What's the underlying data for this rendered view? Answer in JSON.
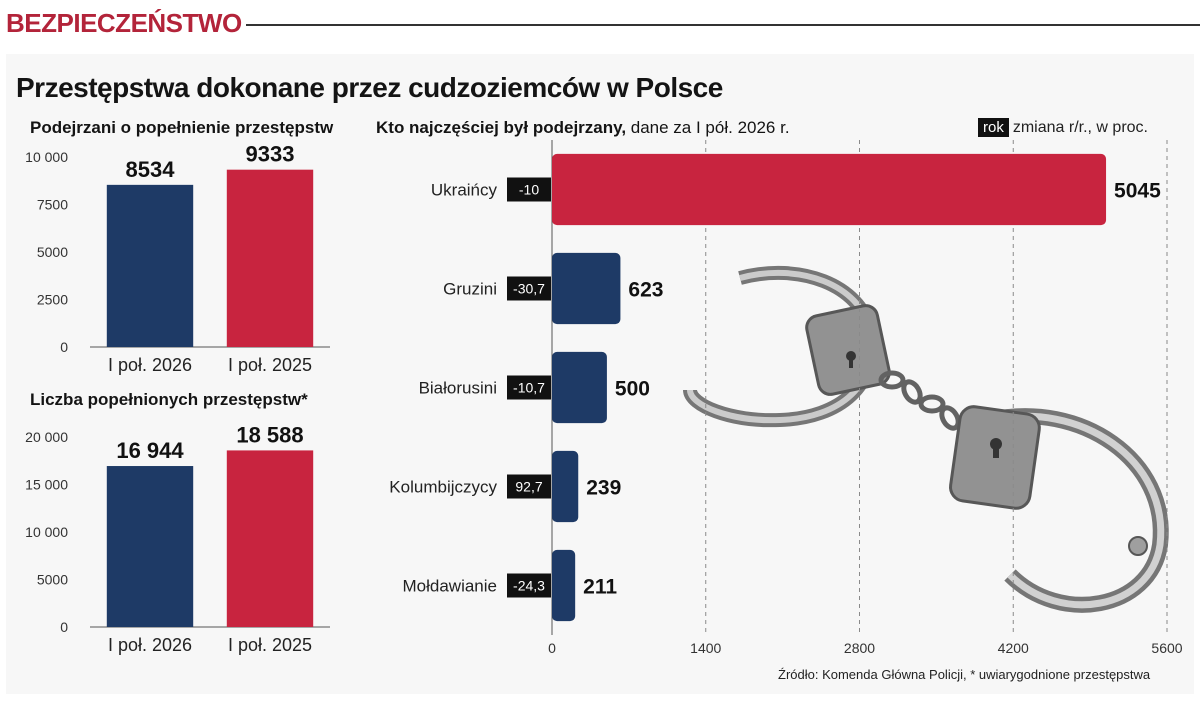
{
  "header": {
    "section": "BEZPIECZEŃSTWO",
    "title": "Przestępstwa dokonane przez cudzoziemców w Polsce"
  },
  "colors": {
    "navy": "#1e3a66",
    "red": "#c8243f",
    "change_bg": "#111111"
  },
  "chart_data": [
    {
      "type": "bar",
      "title": "Podejrzani o popełnienie przestępstw",
      "categories": [
        "I poł. 2026",
        "I poł. 2025"
      ],
      "values": [
        8534,
        9333
      ],
      "value_labels": [
        "8534",
        "9333"
      ],
      "ylim": [
        0,
        10000
      ],
      "yticks": [
        0,
        2500,
        5000,
        7500,
        10000
      ],
      "ytick_labels": [
        "0",
        "2500",
        "5000",
        "7500",
        "10 000"
      ],
      "bar_colors": [
        "#1e3a66",
        "#c8243f"
      ],
      "grid": false
    },
    {
      "type": "bar",
      "title": "Liczba popełnionych przestępstw*",
      "categories": [
        "I poł. 2026",
        "I poł. 2025"
      ],
      "values": [
        16944,
        18588
      ],
      "value_labels": [
        "16 944",
        "18 588"
      ],
      "ylim": [
        0,
        20000
      ],
      "yticks": [
        0,
        5000,
        10000,
        15000,
        20000
      ],
      "ytick_labels": [
        "0",
        "5000",
        "10 000",
        "15 000",
        "20 000"
      ],
      "bar_colors": [
        "#1e3a66",
        "#c8243f"
      ],
      "grid": false
    },
    {
      "type": "bar",
      "orientation": "horizontal",
      "title_bold": "Kto najczęściej był podejrzany,",
      "title_rest": " dane za I pół. 2026 r.",
      "legend_chip": "rok",
      "legend_text": "zmiana r/r., w proc.",
      "categories": [
        "Ukraińcy",
        "Gruzini",
        "Białorusini",
        "Kolumbijczycy",
        "Mołdawianie"
      ],
      "values": [
        5045,
        623,
        500,
        239,
        211
      ],
      "value_labels": [
        "5045",
        "623",
        "500",
        "239",
        "211"
      ],
      "changes": [
        "-10",
        "-30,7",
        "-10,7",
        "92,7",
        "-24,3"
      ],
      "bar_colors": [
        "#c8243f",
        "#1e3a66",
        "#1e3a66",
        "#1e3a66",
        "#1e3a66"
      ],
      "xlim": [
        0,
        5600
      ],
      "xticks": [
        0,
        1400,
        2800,
        4200,
        5600
      ],
      "xtick_labels": [
        "0",
        "1400",
        "2800",
        "4200",
        "5600"
      ],
      "grid": "dashed vertical"
    }
  ],
  "footer": {
    "source": "Źródło: Komenda Główna Policji, * uwiarygodnione przestępstwa"
  }
}
